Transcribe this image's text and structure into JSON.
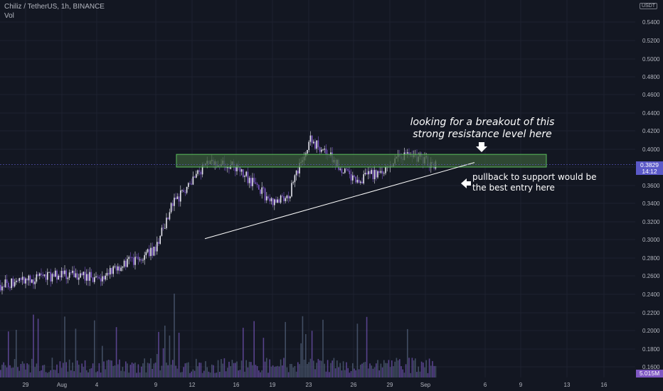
{
  "header": {
    "symbol_line": "Chiliz / TetherUS, 1h, BINANCE",
    "sub_line": "Vol"
  },
  "currency_badge": "USDT",
  "annotations": {
    "breakout_line1": "looking for a breakout of this",
    "breakout_line2": "strong resistance level here",
    "pullback_line1": "pullback to support would be",
    "pullback_line2": "the best entry here"
  },
  "last_price": "0.3829",
  "countdown": "14:12",
  "volume_value": "5.015M",
  "colors": {
    "background": "#131722",
    "grid": "#1e2230",
    "candle_up": "#e6e6ef",
    "candle_down": "#7b54c7",
    "zone_fill": "#3a5a3a",
    "zone_border": "#5cbf5c",
    "price_tag": "#5b59c8",
    "text": "#b2b5be"
  },
  "chart_data": {
    "type": "candlestick",
    "y_axis": {
      "min": 0.15,
      "max": 0.55,
      "ticks": [
        "0.5400",
        "0.5200",
        "0.5000",
        "0.4800",
        "0.4600",
        "0.4400",
        "0.4200",
        "0.4000",
        "0.3800",
        "0.3600",
        "0.3400",
        "0.3200",
        "0.3000",
        "0.2800",
        "0.2600",
        "0.2400",
        "0.2200",
        "0.2000",
        "0.1800",
        "0.1600"
      ]
    },
    "x_axis": {
      "ticks": [
        "29",
        "Aug",
        "4",
        "9",
        "12",
        "16",
        "19",
        "23",
        "26",
        "29",
        "Sep",
        "6",
        "9",
        "13",
        "16"
      ]
    },
    "price_path": [
      [
        "29",
        0.25
      ],
      [
        "Aug",
        0.262
      ],
      [
        "4",
        0.258
      ],
      [
        "9",
        0.29
      ],
      [
        "9",
        0.335
      ],
      [
        "12",
        0.368
      ],
      [
        "12",
        0.385
      ],
      [
        "16",
        0.38
      ],
      [
        "19",
        0.34
      ],
      [
        "19",
        0.345
      ],
      [
        "23",
        0.41
      ],
      [
        "23",
        0.4
      ],
      [
        "26",
        0.365
      ],
      [
        "26",
        0.37
      ],
      [
        "29",
        0.38
      ],
      [
        "29",
        0.395
      ],
      [
        "Sep",
        0.3829
      ]
    ],
    "resistance_zone": {
      "low": 0.38,
      "high": 0.394
    },
    "trendline": [
      {
        "x": "12",
        "y": 0.301
      },
      {
        "x": "9",
        "y": 0.385
      }
    ],
    "current_price": 0.3829
  }
}
